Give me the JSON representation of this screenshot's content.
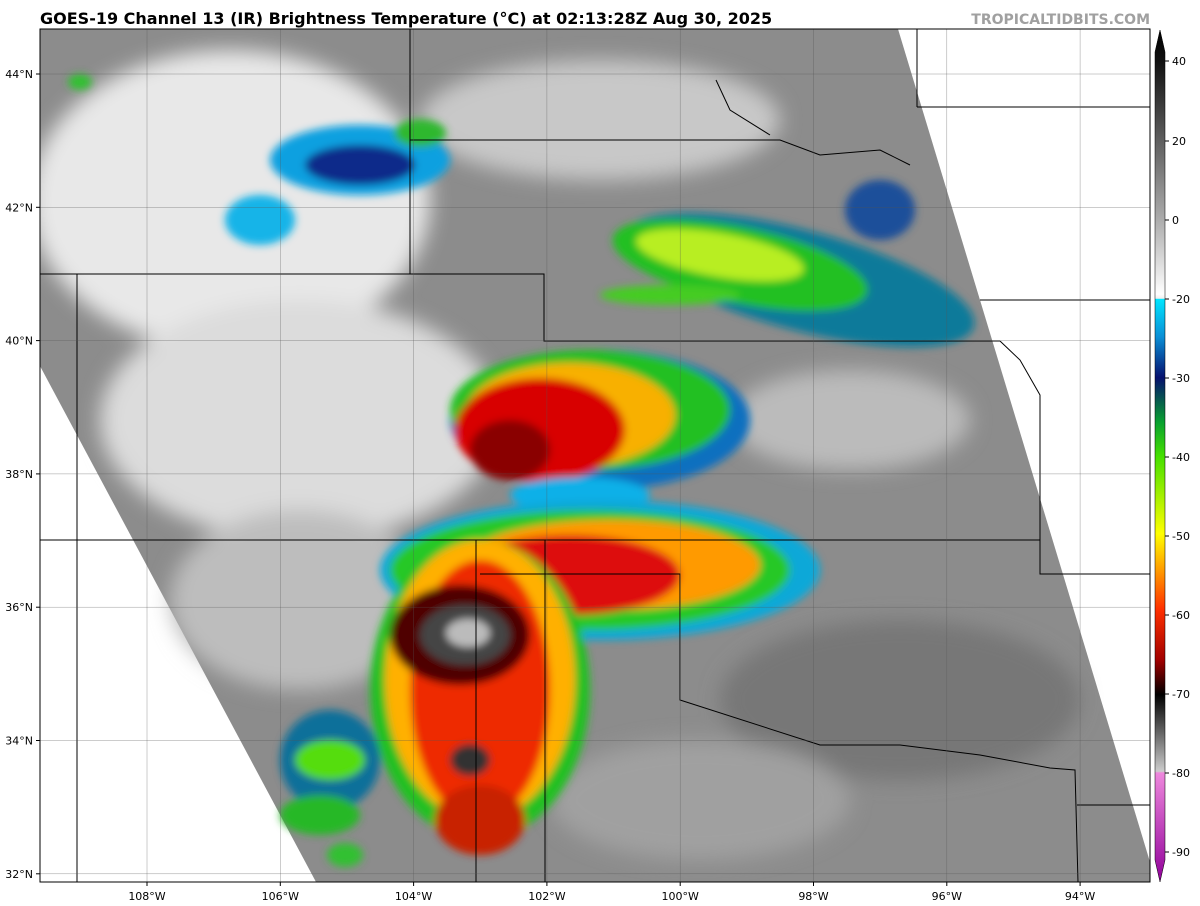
{
  "header": {
    "title": "GOES-19 Channel 13 (IR) Brightness Temperature (°C) at 02:13:28Z Aug 30, 2025",
    "credit": "TROPICALTIDBITS.COM"
  },
  "map": {
    "lon_labels": [
      "108°W",
      "106°W",
      "104°W",
      "102°W",
      "100°W",
      "98°W",
      "96°W",
      "94°W"
    ],
    "lat_labels": [
      "44°N",
      "42°N",
      "40°N",
      "38°N",
      "36°N",
      "34°N",
      "32°N"
    ]
  },
  "colorbar": {
    "labels": [
      "40",
      "20",
      "0",
      "-20",
      "-30",
      "-40",
      "-50",
      "-60",
      "-70",
      "-80",
      "-90"
    ]
  }
}
